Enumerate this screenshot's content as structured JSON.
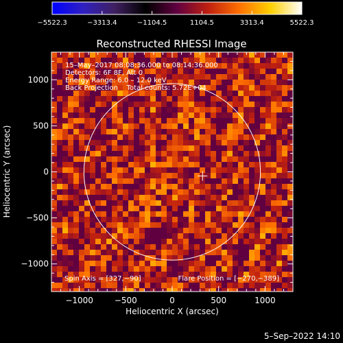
{
  "chart_data": {
    "type": "heatmap",
    "title": "Reconstructed RHESSI Image",
    "xlabel": "Heliocentric X (arcsec)",
    "ylabel": "Heliocentric Y (arcsec)",
    "xlim": [
      -1300,
      1300
    ],
    "ylim": [
      -1300,
      1300
    ],
    "xticks": [
      -1000,
      -500,
      0,
      500,
      1000
    ],
    "yticks": [
      -1000,
      -500,
      0,
      500,
      1000
    ],
    "colorbar": {
      "min": -5522.3,
      "max": 5522.3,
      "tick_labels": [
        "−5522.3",
        "−3313.4",
        "−1104.5",
        "1104.5",
        "3313.4",
        "5522.3"
      ],
      "colors": [
        "#0000ff",
        "#3020c0",
        "#402060",
        "#000000",
        "#600040",
        "#c02010",
        "#ff7000",
        "#ffd000",
        "#ffffff"
      ]
    },
    "solar_disk": {
      "center": [
        0,
        0
      ],
      "radius": 950,
      "color": "#ffffff"
    },
    "flare_marker": {
      "x": 327,
      "y": -45
    },
    "annotations": [
      "15–May–2017 08:08:36.000 to 08:14:36.000",
      "Detectors: 6F 8F, Att 0",
      "Energy Range: 6.0 – 12.0 keV",
      "Back Projection    Total counts: 5.72E+04"
    ],
    "footer_left": "Spin Axis = [327,−90]",
    "footer_right": "Flare Position = [−270,−389]",
    "timestamp": "5–Sep–2022 14:10"
  }
}
